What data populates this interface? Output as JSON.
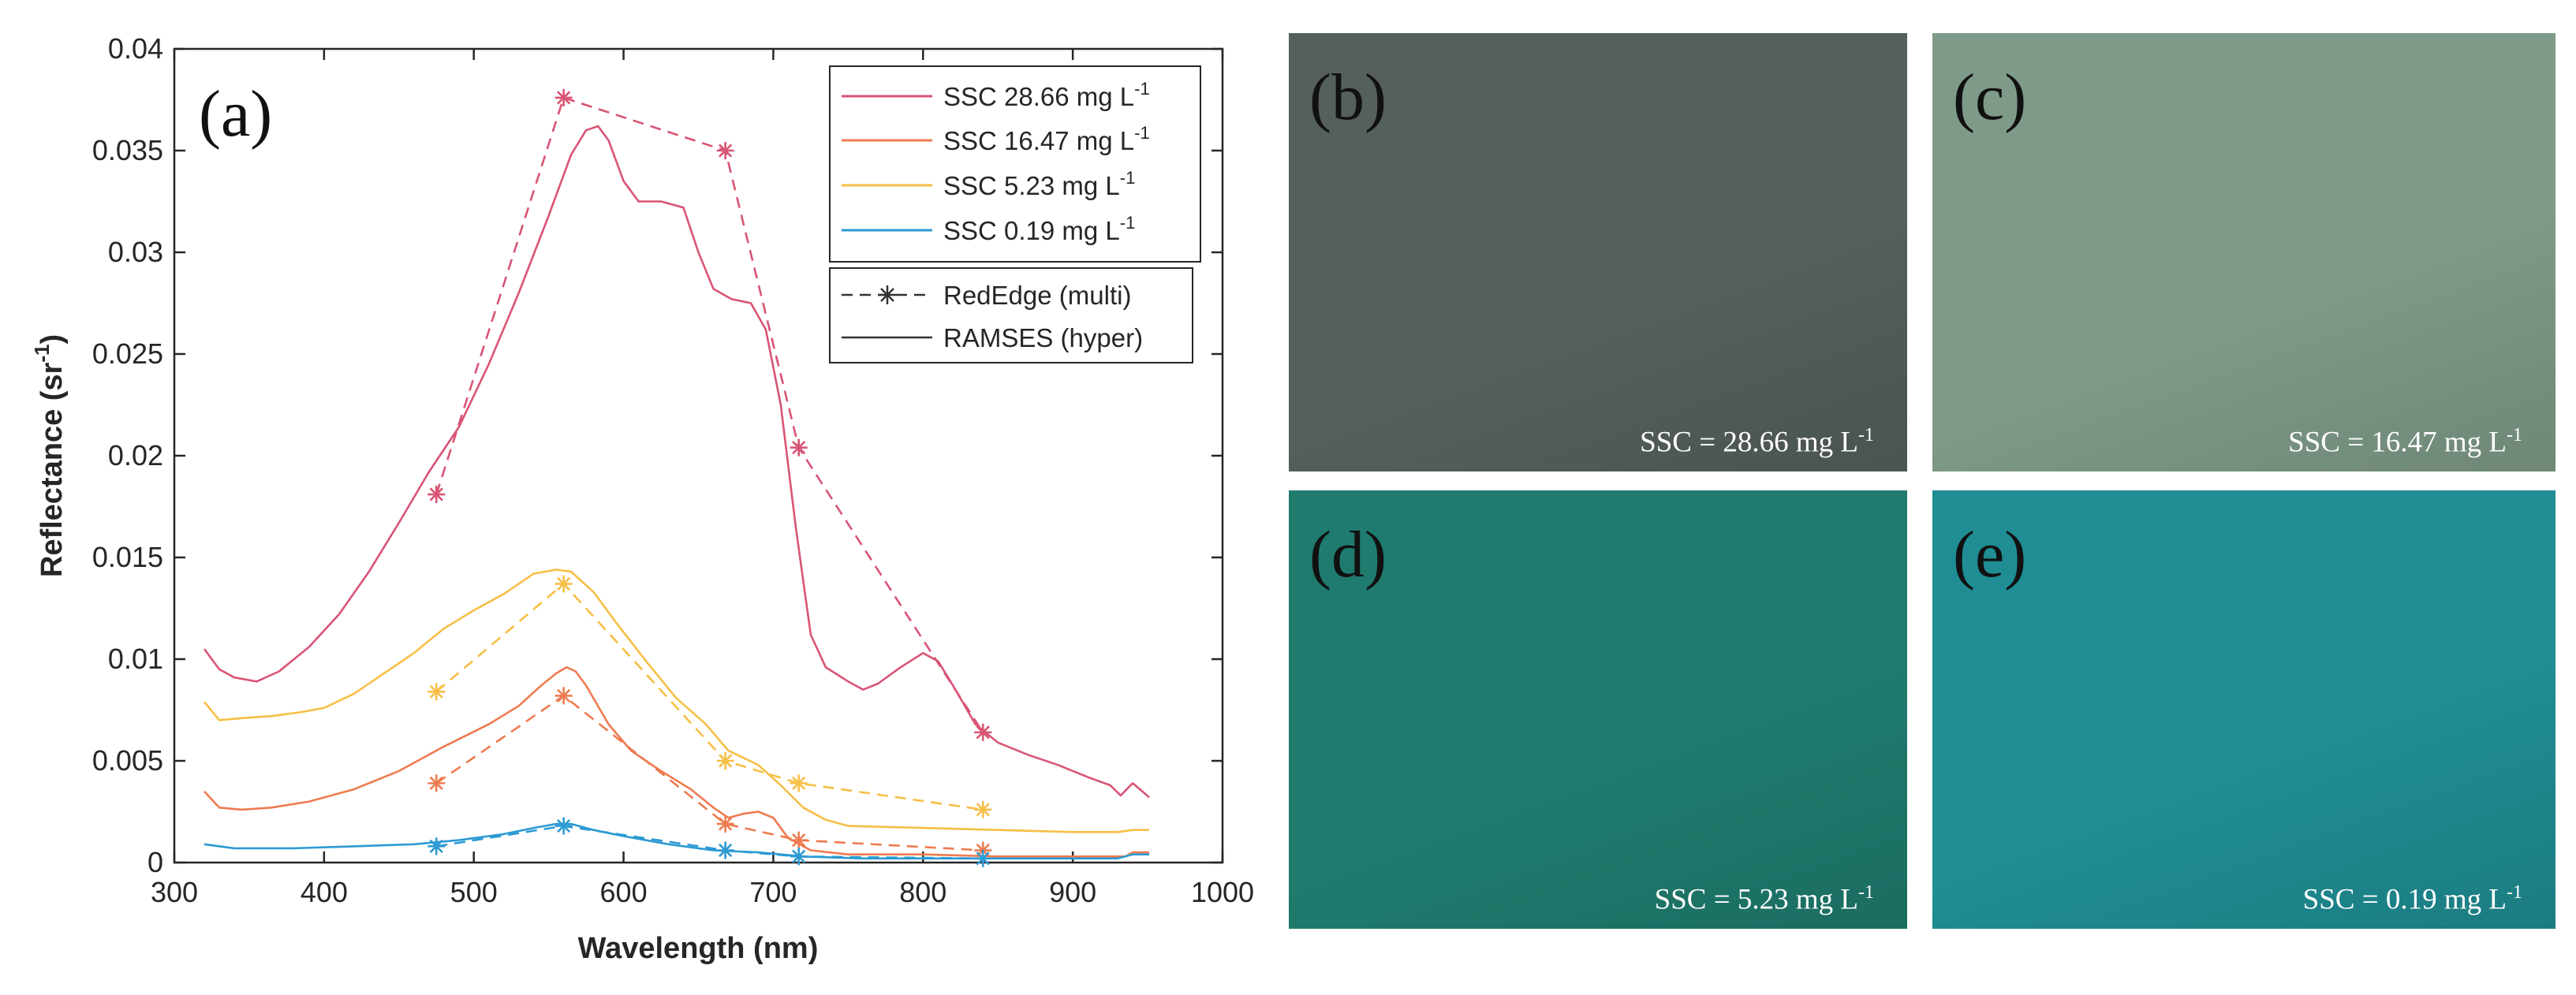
{
  "chart_data": {
    "type": "line",
    "panel_label": "(a)",
    "xlabel": "Wavelength (nm)",
    "ylabel": "Reflectance (sr",
    "ylabel_sup": "-1",
    "ylabel_end": ")",
    "xlim": [
      300,
      1000
    ],
    "ylim": [
      0,
      0.04
    ],
    "xticks": [
      300,
      400,
      500,
      600,
      700,
      800,
      900,
      1000
    ],
    "yticks": [
      0,
      0.005,
      0.01,
      0.015,
      0.02,
      0.025,
      0.03,
      0.035,
      0.04
    ],
    "ytick_labels": [
      "0",
      "0.005",
      "0.01",
      "0.015",
      "0.02",
      "0.025",
      "0.03",
      "0.035",
      "0.04"
    ],
    "series": [
      {
        "name": "SSC 28.66 mg L",
        "name_sup": "-1",
        "color": "#d95475",
        "hyper": [
          [
            320,
            0.0105
          ],
          [
            330,
            0.0095
          ],
          [
            340,
            0.0091
          ],
          [
            355,
            0.0089
          ],
          [
            370,
            0.0094
          ],
          [
            390,
            0.0106
          ],
          [
            410,
            0.0122
          ],
          [
            430,
            0.0143
          ],
          [
            450,
            0.0167
          ],
          [
            470,
            0.0192
          ],
          [
            490,
            0.0214
          ],
          [
            510,
            0.0245
          ],
          [
            530,
            0.028
          ],
          [
            550,
            0.0318
          ],
          [
            565,
            0.0348
          ],
          [
            575,
            0.036
          ],
          [
            583,
            0.0362
          ],
          [
            590,
            0.0355
          ],
          [
            600,
            0.0335
          ],
          [
            610,
            0.0325
          ],
          [
            625,
            0.0325
          ],
          [
            640,
            0.0322
          ],
          [
            650,
            0.03
          ],
          [
            660,
            0.0282
          ],
          [
            672,
            0.0277
          ],
          [
            685,
            0.0275
          ],
          [
            695,
            0.0262
          ],
          [
            705,
            0.0225
          ],
          [
            715,
            0.0165
          ],
          [
            725,
            0.0112
          ],
          [
            735,
            0.0096
          ],
          [
            750,
            0.0089
          ],
          [
            760,
            0.0085
          ],
          [
            770,
            0.0088
          ],
          [
            785,
            0.0096
          ],
          [
            800,
            0.0103
          ],
          [
            810,
            0.0099
          ],
          [
            820,
            0.0087
          ],
          [
            835,
            0.0068
          ],
          [
            850,
            0.0059
          ],
          [
            870,
            0.0053
          ],
          [
            890,
            0.0048
          ],
          [
            910,
            0.0042
          ],
          [
            925,
            0.0038
          ],
          [
            932,
            0.0033
          ],
          [
            940,
            0.0039
          ],
          [
            948,
            0.0034
          ],
          [
            951,
            0.0032
          ]
        ],
        "multi": [
          [
            475,
            0.0181
          ],
          [
            560,
            0.0376
          ],
          [
            668,
            0.035
          ],
          [
            717,
            0.0204
          ],
          [
            840,
            0.0064
          ]
        ]
      },
      {
        "name": "SSC 16.47 mg L",
        "name_sup": "-1",
        "color": "#ef7b50",
        "hyper": [
          [
            320,
            0.0035
          ],
          [
            330,
            0.0027
          ],
          [
            345,
            0.0026
          ],
          [
            365,
            0.0027
          ],
          [
            390,
            0.003
          ],
          [
            420,
            0.0036
          ],
          [
            450,
            0.0045
          ],
          [
            480,
            0.0057
          ],
          [
            510,
            0.0068
          ],
          [
            530,
            0.0077
          ],
          [
            545,
            0.0087
          ],
          [
            555,
            0.0093
          ],
          [
            562,
            0.0096
          ],
          [
            568,
            0.0094
          ],
          [
            575,
            0.0087
          ],
          [
            590,
            0.0068
          ],
          [
            605,
            0.0055
          ],
          [
            625,
            0.0045
          ],
          [
            645,
            0.0036
          ],
          [
            660,
            0.0027
          ],
          [
            670,
            0.0022
          ],
          [
            680,
            0.0024
          ],
          [
            690,
            0.0025
          ],
          [
            700,
            0.0022
          ],
          [
            710,
            0.0012
          ],
          [
            725,
            0.0006
          ],
          [
            750,
            0.0004
          ],
          [
            800,
            0.0004
          ],
          [
            850,
            0.0003
          ],
          [
            900,
            0.0003
          ],
          [
            935,
            0.0003
          ],
          [
            940,
            0.0005
          ],
          [
            951,
            0.0005
          ]
        ],
        "multi": [
          [
            475,
            0.0039
          ],
          [
            560,
            0.0082
          ],
          [
            668,
            0.0019
          ],
          [
            717,
            0.0011
          ],
          [
            840,
            0.0006
          ]
        ]
      },
      {
        "name": "SSC 5.23 mg L",
        "name_sup": "-1",
        "color": "#f6bf46",
        "hyper": [
          [
            320,
            0.0079
          ],
          [
            330,
            0.007
          ],
          [
            345,
            0.0071
          ],
          [
            365,
            0.0072
          ],
          [
            385,
            0.0074
          ],
          [
            400,
            0.0076
          ],
          [
            420,
            0.0083
          ],
          [
            440,
            0.0093
          ],
          [
            460,
            0.0103
          ],
          [
            480,
            0.0115
          ],
          [
            500,
            0.0124
          ],
          [
            520,
            0.0132
          ],
          [
            540,
            0.0142
          ],
          [
            555,
            0.0144
          ],
          [
            565,
            0.0143
          ],
          [
            580,
            0.0133
          ],
          [
            595,
            0.0118
          ],
          [
            615,
            0.0099
          ],
          [
            635,
            0.0081
          ],
          [
            655,
            0.0068
          ],
          [
            670,
            0.0055
          ],
          [
            690,
            0.0048
          ],
          [
            705,
            0.0038
          ],
          [
            720,
            0.0027
          ],
          [
            735,
            0.0021
          ],
          [
            750,
            0.0018
          ],
          [
            800,
            0.0017
          ],
          [
            850,
            0.0016
          ],
          [
            900,
            0.0015
          ],
          [
            930,
            0.0015
          ],
          [
            940,
            0.0016
          ],
          [
            951,
            0.0016
          ]
        ],
        "multi": [
          [
            475,
            0.0084
          ],
          [
            560,
            0.0137
          ],
          [
            668,
            0.005
          ],
          [
            717,
            0.0039
          ],
          [
            840,
            0.0026
          ]
        ]
      },
      {
        "name": "SSC 0.19 mg L",
        "name_sup": "-1",
        "color": "#2c9ad3",
        "hyper": [
          [
            320,
            0.0009
          ],
          [
            340,
            0.0007
          ],
          [
            380,
            0.0007
          ],
          [
            420,
            0.0008
          ],
          [
            460,
            0.0009
          ],
          [
            490,
            0.0011
          ],
          [
            520,
            0.0014
          ],
          [
            540,
            0.0017
          ],
          [
            555,
            0.0019
          ],
          [
            565,
            0.0019
          ],
          [
            580,
            0.0016
          ],
          [
            600,
            0.0013
          ],
          [
            630,
            0.0009
          ],
          [
            660,
            0.0006
          ],
          [
            690,
            0.0005
          ],
          [
            720,
            0.0003
          ],
          [
            760,
            0.0002
          ],
          [
            850,
            0.0002
          ],
          [
            930,
            0.0002
          ],
          [
            940,
            0.0004
          ],
          [
            951,
            0.0004
          ]
        ],
        "multi": [
          [
            475,
            0.0008
          ],
          [
            560,
            0.0018
          ],
          [
            668,
            0.0006
          ],
          [
            717,
            0.0003
          ],
          [
            840,
            0.0002
          ]
        ]
      }
    ],
    "type_legend": [
      {
        "label": "RedEdge (multi)"
      },
      {
        "label": "RAMSES (hyper)"
      }
    ]
  },
  "photos": [
    {
      "tag": "(b)",
      "caption": "SSC = 28.66 mg L",
      "caption_sup": "-1",
      "color": "#55605a"
    },
    {
      "tag": "(c)",
      "caption": "SSC = 16.47 mg L",
      "caption_sup": "-1",
      "color": "#7e9a88"
    },
    {
      "tag": "(d)",
      "caption": "SSC = 5.23 mg L",
      "caption_sup": "-1",
      "color": "#1f7b6e"
    },
    {
      "tag": "(e)",
      "caption": "SSC = 0.19 mg L",
      "caption_sup": "-1",
      "color": "#1f8d93"
    }
  ]
}
